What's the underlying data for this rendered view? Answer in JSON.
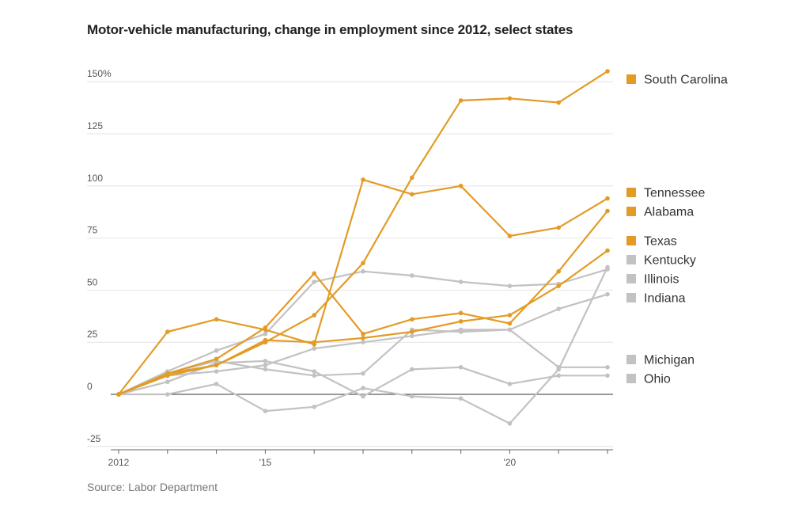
{
  "title": "Motor-vehicle manufacturing, change in employment since 2012, select states",
  "source": "Source: Labor Department",
  "chart_data": {
    "type": "line",
    "title": "Motor-vehicle manufacturing, change in employment since 2012, select states",
    "x": [
      2012,
      2013,
      2014,
      2015,
      2016,
      2017,
      2018,
      2019,
      2020,
      2021,
      2022
    ],
    "x_tick_labels": [
      {
        "x": 2012,
        "label": "2012"
      },
      {
        "x": 2015,
        "label": "'15"
      },
      {
        "x": 2020,
        "label": "'20"
      }
    ],
    "y_ticks": [
      {
        "value": 150,
        "label": "150%"
      },
      {
        "value": 125,
        "label": "125"
      },
      {
        "value": 100,
        "label": "100"
      },
      {
        "value": 75,
        "label": "75"
      },
      {
        "value": 50,
        "label": "50"
      },
      {
        "value": 25,
        "label": "25"
      },
      {
        "value": 0,
        "label": "0"
      },
      {
        "value": -25,
        "label": "-25"
      }
    ],
    "ylim": [
      -25,
      155
    ],
    "highlight_color": "#e39b25",
    "muted_color": "#c2c2c2",
    "series": [
      {
        "name": "South Carolina",
        "highlight": true,
        "values": [
          0,
          10,
          14,
          25,
          38,
          63,
          104,
          141,
          142,
          140,
          155
        ]
      },
      {
        "name": "Tennessee",
        "highlight": true,
        "values": [
          0,
          30,
          36,
          31,
          24,
          103,
          96,
          100,
          76,
          80,
          94
        ]
      },
      {
        "name": "Alabama",
        "highlight": true,
        "values": [
          0,
          10,
          17,
          32,
          58,
          29,
          36,
          39,
          34,
          59,
          88
        ]
      },
      {
        "name": "Texas",
        "highlight": true,
        "values": [
          0,
          9,
          14,
          26,
          25,
          27,
          30,
          35,
          38,
          52,
          69
        ]
      },
      {
        "name": "Kentucky",
        "highlight": false,
        "values": [
          0,
          11,
          21,
          29,
          54,
          59,
          57,
          54,
          52,
          53,
          60
        ]
      },
      {
        "name": "Illinois",
        "highlight": false,
        "values": [
          0,
          10,
          16,
          12,
          9,
          10,
          31,
          30,
          31,
          41,
          48
        ]
      },
      {
        "name": "Indiana",
        "highlight": false,
        "values": [
          0,
          9,
          11,
          14,
          22,
          25,
          28,
          31,
          31,
          13,
          13
        ]
      },
      {
        "name": "Michigan",
        "highlight": false,
        "values": [
          0,
          6,
          15,
          16,
          11,
          -1,
          12,
          13,
          5,
          9,
          9
        ]
      },
      {
        "name": "Ohio",
        "highlight": false,
        "values": [
          0,
          0,
          5,
          -8,
          -6,
          3,
          -1,
          -2,
          -14,
          12,
          61
        ]
      }
    ],
    "legend": [
      {
        "name": "South Carolina",
        "highlight": true
      },
      {
        "name": "Tennessee",
        "highlight": true
      },
      {
        "name": "Alabama",
        "highlight": true
      },
      {
        "name": "Texas",
        "highlight": true
      },
      {
        "name": "Kentucky",
        "highlight": false
      },
      {
        "name": "Illinois",
        "highlight": false
      },
      {
        "name": "Indiana",
        "highlight": false
      },
      {
        "name": "Michigan",
        "highlight": false
      },
      {
        "name": "Ohio",
        "highlight": false
      }
    ],
    "legend_position": "right",
    "grid": true
  }
}
